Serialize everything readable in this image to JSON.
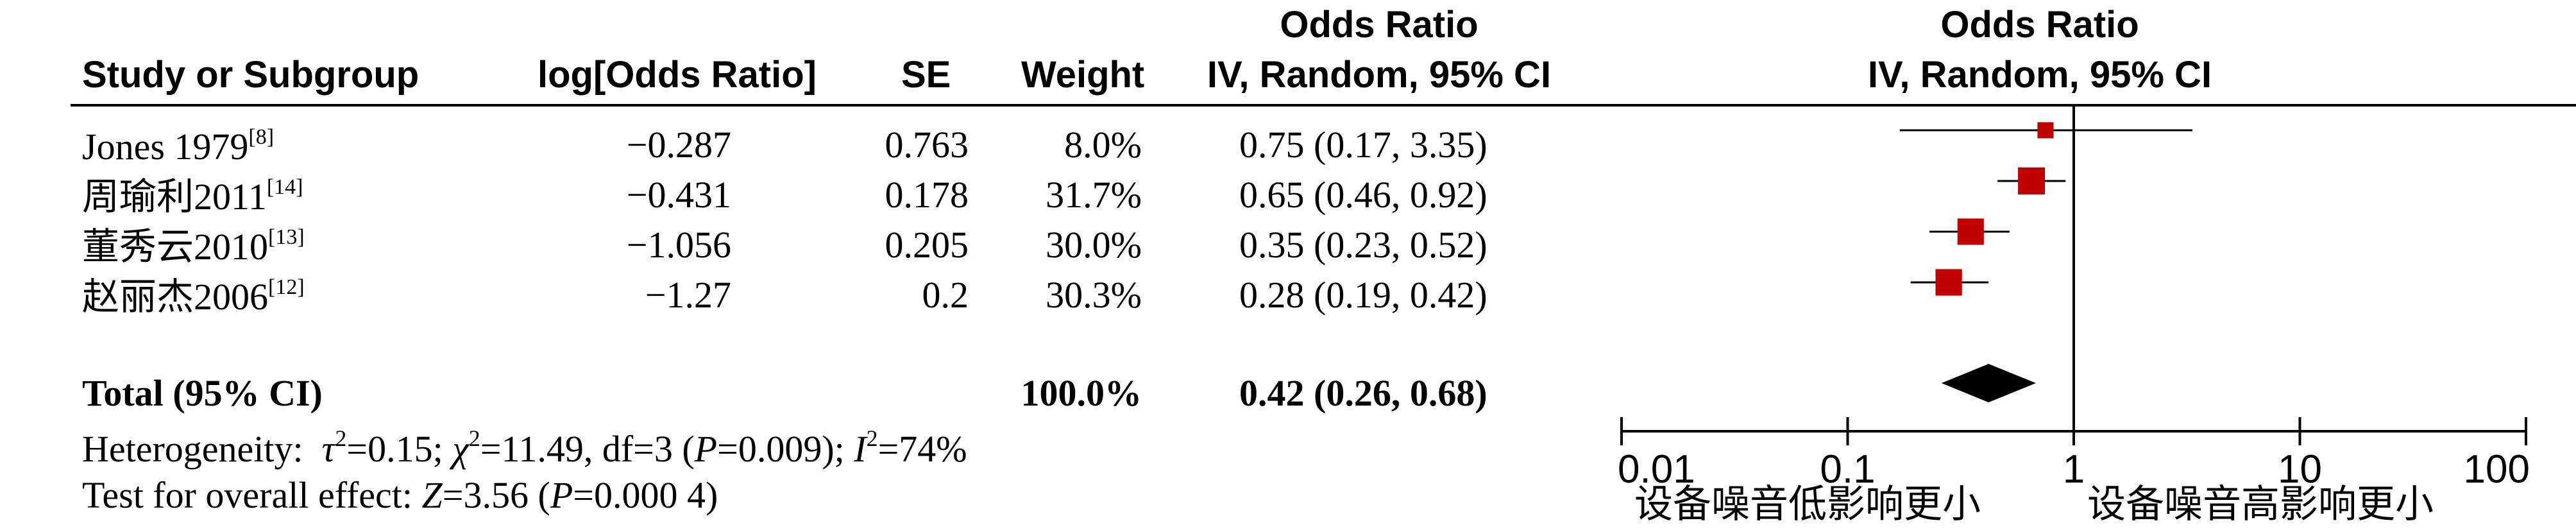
{
  "headers": {
    "study": "Study or Subgroup",
    "log_or": "log[Odds Ratio]",
    "se": "SE",
    "weight": "Weight",
    "or_title": "Odds Ratio",
    "or_method": "IV, Random, 95% CI",
    "plot_title": "Odds Ratio",
    "plot_method": "IV, Random, 95% CI"
  },
  "studies": [
    {
      "name": "Jones 1979",
      "ref": "[8]",
      "log_or": "−0.287",
      "se": "0.763",
      "weight": "8.0%",
      "ci": "0.75 (0.17, 3.35)"
    },
    {
      "name": "周瑜利2011",
      "ref": "[14]",
      "log_or": "−0.431",
      "se": "0.178",
      "weight": "31.7%",
      "ci": "0.65 (0.46, 0.92)"
    },
    {
      "name": "董秀云2010",
      "ref": "[13]",
      "log_or": "−1.056",
      "se": "0.205",
      "weight": "30.0%",
      "ci": "0.35 (0.23, 0.52)"
    },
    {
      "name": "赵丽杰2006",
      "ref": "[12]",
      "log_or": "−1.27",
      "se": "0.2",
      "weight": "30.3%",
      "ci": "0.28 (0.19, 0.42)"
    }
  ],
  "total": {
    "label": "Total (95% CI)",
    "weight": "100.0%",
    "ci": "0.42 (0.26, 0.68)"
  },
  "heterogeneity": {
    "label": "Heterogeneity:",
    "tau": "τ",
    "tau_val": "=0.15; ",
    "chi": "χ",
    "chi_val": "=11.49, df=3 (",
    "p": "P",
    "p_val": "=0.009); ",
    "i": "I",
    "i_val": "=74%",
    "sup2": "2"
  },
  "overall": {
    "label": "Test for overall effect: ",
    "z": "Z",
    "z_val": "=3.56 (",
    "p": "P",
    "p_val": "=0.000 4)"
  },
  "axis_labels": {
    "left": "设备噪音低影响更小",
    "right": "设备噪音高影响更小"
  },
  "colors": {
    "marker": "#c00000",
    "line": "#000000"
  },
  "chart_data": {
    "type": "forest",
    "x_scale": "log",
    "xlim": [
      0.01,
      100
    ],
    "ticks": [
      0.01,
      0.1,
      1,
      10,
      100
    ],
    "tick_labels": [
      "0.01",
      "0.1",
      "1",
      "10",
      "100"
    ],
    "reference_line": 1,
    "points": [
      {
        "name": "Jones 1979",
        "or": 0.75,
        "lower": 0.17,
        "upper": 3.35,
        "weight": 8.0
      },
      {
        "name": "周瑜利2011",
        "or": 0.65,
        "lower": 0.46,
        "upper": 0.92,
        "weight": 31.7
      },
      {
        "name": "董秀云2010",
        "or": 0.35,
        "lower": 0.23,
        "upper": 0.52,
        "weight": 30.0
      },
      {
        "name": "赵丽杰2006",
        "or": 0.28,
        "lower": 0.19,
        "upper": 0.42,
        "weight": 30.3
      }
    ],
    "pooled": {
      "or": 0.42,
      "lower": 0.26,
      "upper": 0.68
    }
  }
}
